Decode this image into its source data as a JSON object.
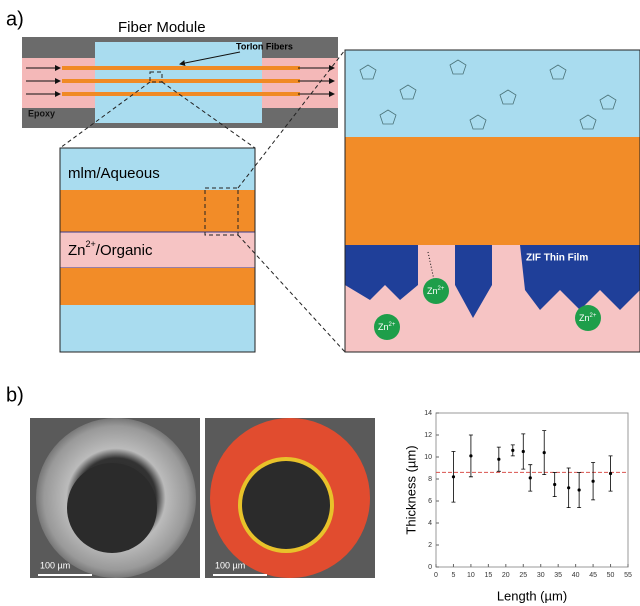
{
  "panel_labels": [
    "a)",
    "b)"
  ],
  "module": {
    "title": "Fiber Module",
    "fibers_label": "Torlon Fibers",
    "epoxy_label": "Epoxy"
  },
  "layers": {
    "aqueous": "mlm/Aqueous",
    "organic": {
      "base": "Zn",
      "charge": "2+",
      "rest": "/Organic"
    }
  },
  "film_label": "ZIF Thin Film",
  "ions": [
    {
      "base": "Zn",
      "charge": "2+"
    },
    {
      "base": "Zn",
      "charge": "2+"
    },
    {
      "base": "Zn",
      "charge": "2+"
    }
  ],
  "scale_bars": [
    "100 µm",
    "100 µm"
  ],
  "chart_data": {
    "type": "errorbar",
    "x_label": "Length (µm)",
    "y_label": "Thickness (µm)",
    "x": [
      5,
      10,
      18,
      22,
      25,
      27,
      31,
      34,
      38,
      41,
      45,
      50
    ],
    "series": [
      {
        "color": "#000000",
        "values": [
          8.2,
          10.1,
          9.8,
          10.6,
          10.5,
          8.1,
          10.4,
          7.5,
          7.2,
          7.0,
          7.8,
          8.5
        ],
        "errors": [
          2.3,
          1.9,
          1.1,
          0.5,
          1.6,
          1.2,
          2.0,
          1.1,
          1.8,
          1.6,
          1.7,
          1.6
        ]
      }
    ],
    "reference_line": {
      "value": 8.6,
      "color": "#d9534f"
    },
    "xlim": [
      0,
      55
    ],
    "xticks": [
      0,
      5,
      10,
      15,
      20,
      25,
      30,
      35,
      40,
      45,
      50,
      55
    ],
    "ylim": [
      0,
      14
    ],
    "yticks": [
      0,
      2,
      4,
      6,
      8,
      10,
      12,
      14
    ]
  }
}
